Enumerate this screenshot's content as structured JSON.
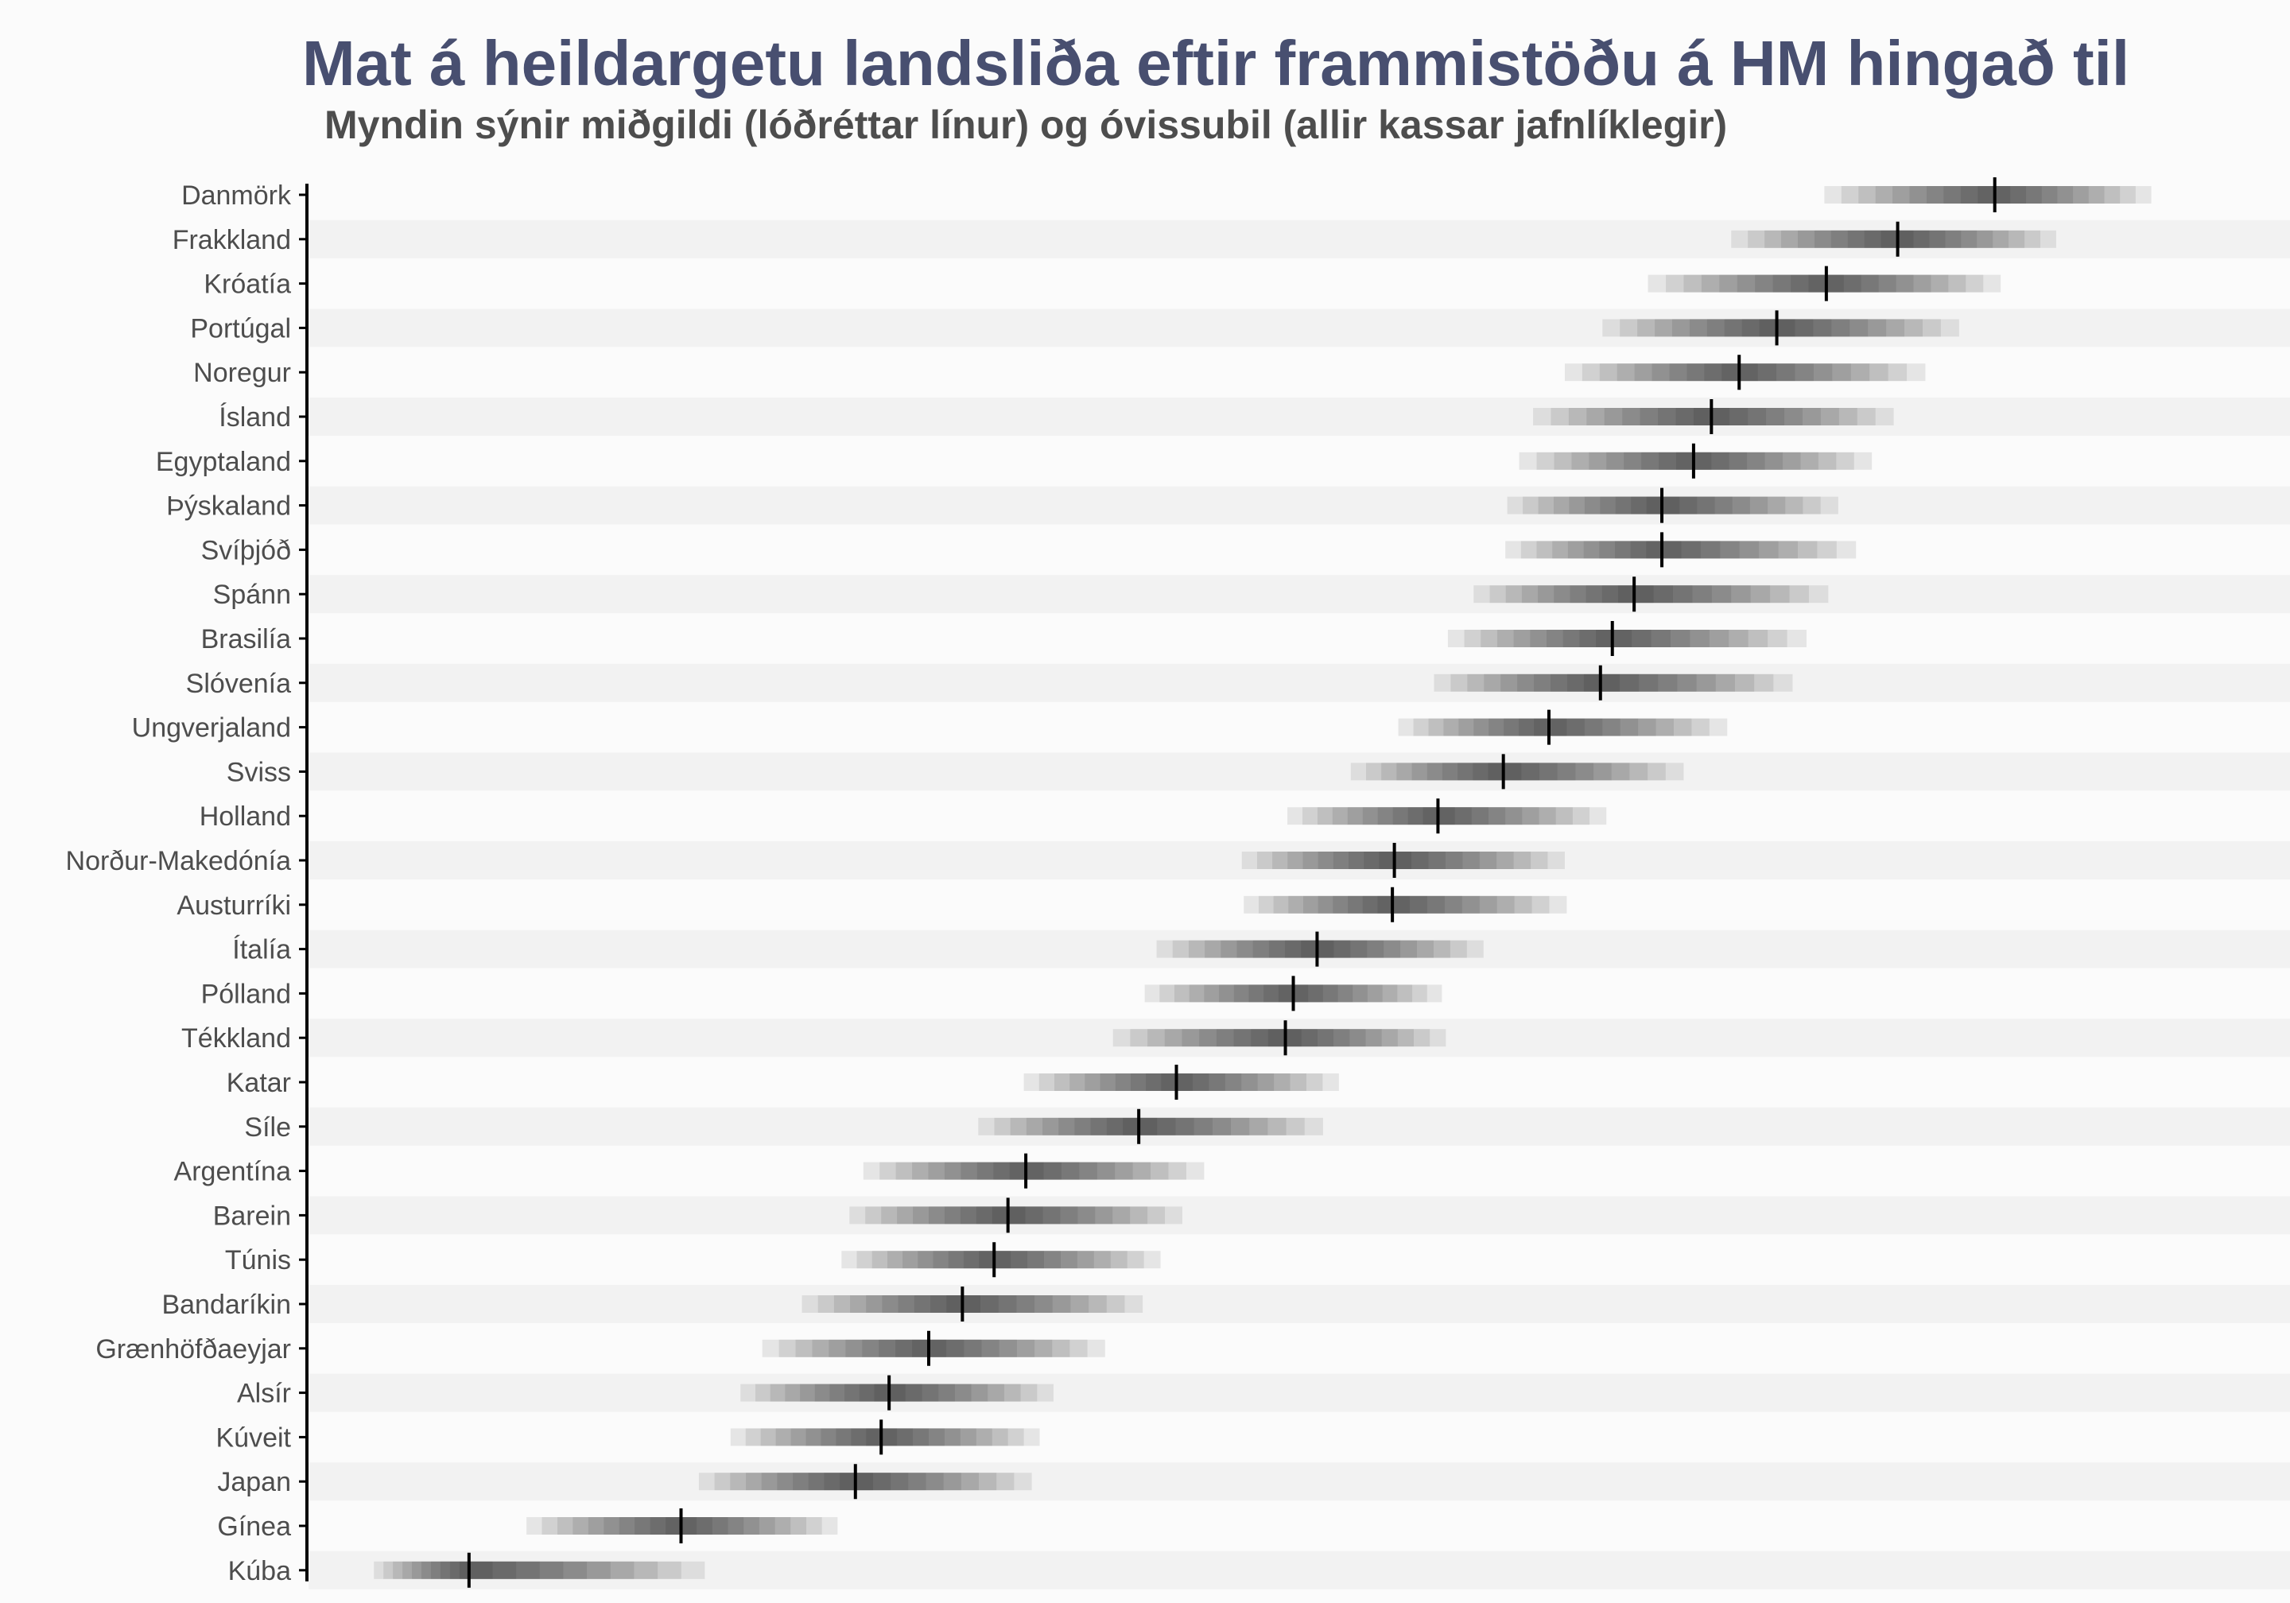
{
  "chart_data": {
    "type": "interval",
    "title": "Mat á heildargetu landsliða eftir frammistöðu á HM hingað til",
    "subtitle": "Myndin sýnir miðgildi (lóðréttar línur) og óvissubil (allir kassar jafnlíklegir)",
    "xlabel": "",
    "ylabel": "",
    "xlim": [
      0,
      100
    ],
    "x_axis_visible": false,
    "grid": "alternating row bands",
    "colors": {
      "median": "#000000",
      "band": "#000000",
      "row_stripe": "#f2f2f2",
      "background": "#fbfbfb",
      "title": "#484f70"
    },
    "series": [
      {
        "name": "Danmörk",
        "median": 85.1,
        "low": 76.5,
        "high": 93.0
      },
      {
        "name": "Frakkland",
        "median": 80.2,
        "low": 71.8,
        "high": 88.2
      },
      {
        "name": "Króatía",
        "median": 76.6,
        "low": 67.6,
        "high": 85.4
      },
      {
        "name": "Portúgal",
        "median": 74.1,
        "low": 65.3,
        "high": 83.3
      },
      {
        "name": "Noregur",
        "median": 72.2,
        "low": 63.4,
        "high": 81.6
      },
      {
        "name": "Ísland",
        "median": 70.8,
        "low": 61.8,
        "high": 80.0
      },
      {
        "name": "Egyptaland",
        "median": 69.9,
        "low": 61.1,
        "high": 78.9
      },
      {
        "name": "Þýskaland",
        "median": 68.3,
        "low": 60.5,
        "high": 77.2
      },
      {
        "name": "Svíþjóð",
        "median": 68.3,
        "low": 60.4,
        "high": 78.1
      },
      {
        "name": "Spánn",
        "median": 66.9,
        "low": 58.8,
        "high": 76.7
      },
      {
        "name": "Brasilía",
        "median": 65.8,
        "low": 57.5,
        "high": 75.6
      },
      {
        "name": "Slóvenía",
        "median": 65.2,
        "low": 56.8,
        "high": 74.9
      },
      {
        "name": "Ungverjaland",
        "median": 62.6,
        "low": 55.0,
        "high": 71.6
      },
      {
        "name": "Sviss",
        "median": 60.3,
        "low": 52.6,
        "high": 69.4
      },
      {
        "name": "Holland",
        "median": 57.0,
        "low": 49.4,
        "high": 65.5
      },
      {
        "name": "Norður-Makedónía",
        "median": 54.8,
        "low": 47.1,
        "high": 63.4
      },
      {
        "name": "Austurríki",
        "median": 54.7,
        "low": 47.2,
        "high": 63.5
      },
      {
        "name": "Ítalía",
        "median": 50.9,
        "low": 42.8,
        "high": 59.3
      },
      {
        "name": "Pólland",
        "median": 49.7,
        "low": 42.2,
        "high": 57.2
      },
      {
        "name": "Tékkland",
        "median": 49.3,
        "low": 40.6,
        "high": 57.4
      },
      {
        "name": "Katar",
        "median": 43.8,
        "low": 36.1,
        "high": 52.0
      },
      {
        "name": "Síle",
        "median": 41.9,
        "low": 33.8,
        "high": 51.2
      },
      {
        "name": "Argentína",
        "median": 36.2,
        "low": 28.0,
        "high": 45.2
      },
      {
        "name": "Barein",
        "median": 35.3,
        "low": 27.3,
        "high": 44.1
      },
      {
        "name": "Túnis",
        "median": 34.6,
        "low": 26.9,
        "high": 43.0
      },
      {
        "name": "Bandaríkin",
        "median": 33.0,
        "low": 24.9,
        "high": 42.1
      },
      {
        "name": "Grænhöfðaeyjar",
        "median": 31.3,
        "low": 22.9,
        "high": 40.2
      },
      {
        "name": "Alsír",
        "median": 29.3,
        "low": 21.8,
        "high": 37.6
      },
      {
        "name": "Kúveit",
        "median": 28.9,
        "low": 21.3,
        "high": 36.9
      },
      {
        "name": "Japan",
        "median": 27.6,
        "low": 19.7,
        "high": 36.5
      },
      {
        "name": "Gínea",
        "median": 18.8,
        "low": 11.0,
        "high": 26.7
      },
      {
        "name": "Kúba",
        "median": 8.1,
        "low": 3.3,
        "high": 20.0
      }
    ]
  }
}
